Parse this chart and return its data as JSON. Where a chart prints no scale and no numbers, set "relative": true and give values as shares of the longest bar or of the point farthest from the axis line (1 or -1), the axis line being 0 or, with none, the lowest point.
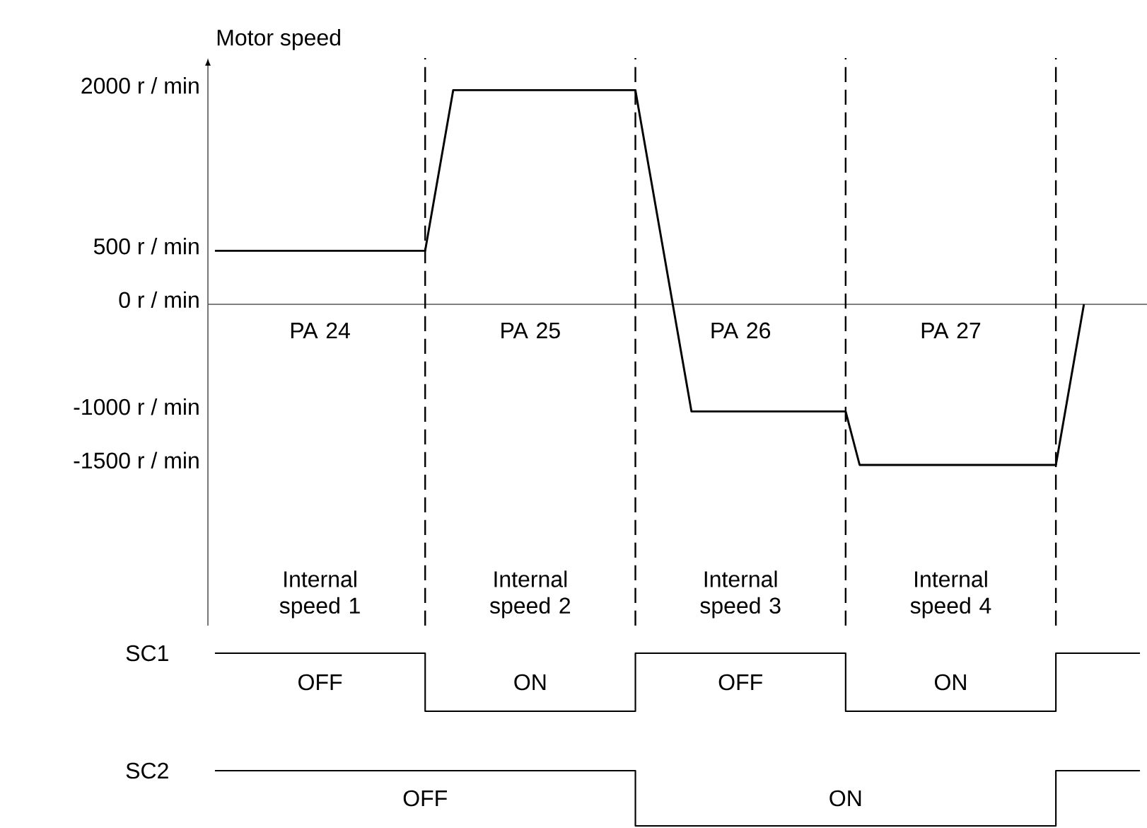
{
  "chart_data": [
    {
      "type": "line",
      "ylabel": "Motor speed",
      "color": "#000000",
      "categories": [
        null,
        null,
        null,
        null,
        null,
        null,
        null,
        null,
        null,
        null,
        null,
        null,
        null,
        null,
        null,
        null,
        null,
        null,
        null,
        null,
        null,
        null,
        null,
        null,
        null,
        null,
        null,
        null,
        null,
        null,
        null,
        null,
        null,
        null,
        null,
        null,
        null,
        null,
        null,
        null,
        null,
        null,
        null,
        null,
        null,
        null,
        null,
        null,
        null,
        null,
        null,
        null,
        null,
        null,
        null,
        null,
        null,
        null,
        null,
        null,
        null,
        null,
        null,
        null,
        null,
        null,
        null
      ],
      "values": [
        500,
        500,
        500,
        500,
        500,
        500,
        500,
        500,
        500,
        500,
        500,
        500,
        500,
        500,
        500,
        500,
        1250,
        2000,
        2000,
        2000,
        2000,
        2000,
        2000,
        2000,
        2000,
        2000,
        2000,
        2000,
        2000,
        2000,
        2000,
        1250,
        500,
        -250,
        -1000,
        -1000,
        -1000,
        -1000,
        -1000,
        -1000,
        -1000,
        -1000,
        -1000,
        -1000,
        -1000,
        -1000,
        -1500,
        -1500,
        -1500,
        -1500,
        -1500,
        -1500,
        -1500,
        -1500,
        -1500,
        -1500,
        -1500,
        -1500,
        -1500,
        -1500,
        -1500,
        -750,
        0,
        null,
        null,
        null,
        null
      ],
      "ylim": [
        -3000,
        2300
      ],
      "yticks": [
        {
          "value": 2000,
          "label": "2000 r / min"
        },
        {
          "value": 500,
          "label": "500 r / min"
        },
        {
          "value": 0,
          "label": "0 r / min"
        },
        {
          "value": -1000,
          "label": "-1000 r / min"
        },
        {
          "value": -1500,
          "label": "-1500 r / min"
        }
      ],
      "tick_labels": "y",
      "grid": "x",
      "ref_lines": [
        {
          "axis": "y",
          "value": 0,
          "line_style": "solid",
          "color": "#555555"
        }
      ],
      "annotations": [
        "PA 24",
        "PA 25",
        "PA 26",
        "PA 27",
        "Internal speed 1",
        "Internal speed 2",
        "Internal speed 3",
        "Internal speed 4"
      ]
    },
    {
      "type": "step",
      "ylabel": "SC1",
      "color": "#000000",
      "relative": true,
      "tick_labels": false,
      "categories": [
        null,
        null,
        null,
        null,
        null,
        null,
        null,
        null,
        null,
        null,
        null,
        null,
        null,
        null,
        null,
        null,
        null,
        null,
        null,
        null,
        null,
        null,
        null,
        null,
        null,
        null,
        null,
        null,
        null,
        null,
        null,
        null,
        null,
        null,
        null,
        null,
        null,
        null,
        null,
        null,
        null,
        null,
        null,
        null,
        null,
        null,
        null,
        null,
        null,
        null,
        null,
        null,
        null,
        null,
        null,
        null,
        null,
        null,
        null,
        null,
        null,
        null,
        null,
        null,
        null,
        null,
        null
      ],
      "values": [
        1,
        1,
        1,
        1,
        1,
        1,
        1,
        1,
        1,
        1,
        1,
        1,
        1,
        1,
        1,
        0,
        0,
        0,
        0,
        0,
        0,
        0,
        0,
        0,
        0,
        0,
        0,
        0,
        0,
        0,
        1,
        1,
        1,
        1,
        1,
        1,
        1,
        1,
        1,
        1,
        1,
        1,
        1,
        1,
        1,
        0,
        0,
        0,
        0,
        0,
        0,
        0,
        0,
        0,
        0,
        0,
        0,
        0,
        0,
        0,
        1,
        1,
        1,
        1,
        1,
        1,
        1
      ],
      "annotations": [
        "OFF",
        "ON",
        "OFF",
        "ON"
      ]
    },
    {
      "type": "step",
      "ylabel": "SC2",
      "color": "#000000",
      "relative": true,
      "tick_labels": false,
      "categories": [
        null,
        null,
        null,
        null,
        null,
        null,
        null,
        null,
        null,
        null,
        null,
        null,
        null,
        null,
        null,
        null,
        null,
        null,
        null,
        null,
        null,
        null,
        null,
        null,
        null,
        null,
        null,
        null,
        null,
        null,
        null,
        null,
        null,
        null,
        null,
        null,
        null,
        null,
        null,
        null,
        null,
        null,
        null,
        null,
        null,
        null,
        null,
        null,
        null,
        null,
        null,
        null,
        null,
        null,
        null,
        null,
        null,
        null,
        null,
        null,
        null,
        null,
        null,
        null,
        null,
        null,
        null
      ],
      "values": [
        1,
        1,
        1,
        1,
        1,
        1,
        1,
        1,
        1,
        1,
        1,
        1,
        1,
        1,
        1,
        1,
        1,
        1,
        1,
        1,
        1,
        1,
        1,
        1,
        1,
        1,
        1,
        1,
        1,
        1,
        0,
        0,
        0,
        0,
        0,
        0,
        0,
        0,
        0,
        0,
        0,
        0,
        0,
        0,
        0,
        0,
        0,
        0,
        0,
        0,
        0,
        0,
        0,
        0,
        0,
        0,
        0,
        0,
        0,
        0,
        1,
        1,
        1,
        1,
        1,
        1,
        1
      ],
      "annotations": [
        "OFF",
        "ON"
      ]
    }
  ]
}
